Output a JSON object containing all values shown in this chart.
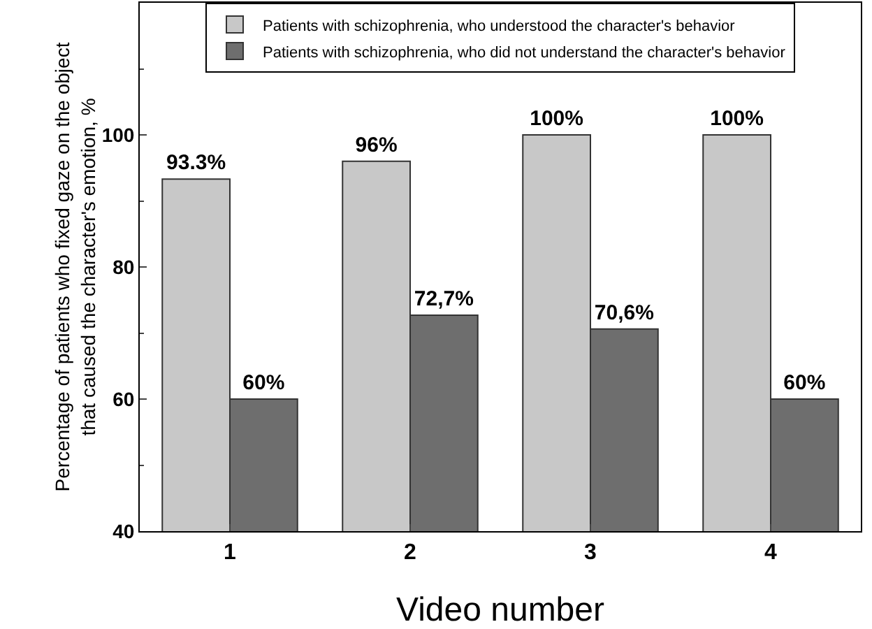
{
  "chart_data": {
    "type": "bar",
    "categories": [
      "1",
      "2",
      "3",
      "4"
    ],
    "series": [
      {
        "name": "Patients with schizophrenia, who understood the character's behavior",
        "color": "#c8c8c8",
        "values": [
          93.3,
          96,
          100,
          100
        ],
        "value_labels": [
          "93.3%",
          "96%",
          "100%",
          "100%"
        ]
      },
      {
        "name": "Patients with schizophrenia, who did not understand the character's behavior",
        "color": "#6e6e6e",
        "values": [
          60,
          72.7,
          70.6,
          60
        ],
        "value_labels": [
          "60%",
          "72,7%",
          "70,6%",
          "60%"
        ]
      }
    ],
    "xlabel": "Video number",
    "ylabel": "Percentage of patients who fixed gaze on the object\nthat caused the character's emotion, %",
    "ylim": [
      40,
      120
    ],
    "yticks": [
      40,
      60,
      80,
      100
    ],
    "grid": false,
    "legend": "top"
  }
}
